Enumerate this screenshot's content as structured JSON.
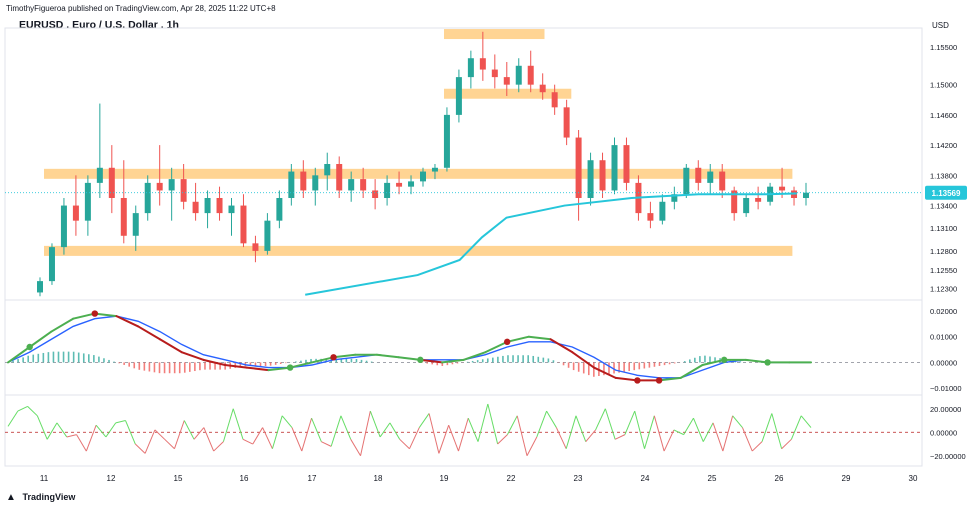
{
  "header": {
    "text": "TimothyFigueroa published on TradingView.com, Apr 28, 2025 11:22 UTC+8"
  },
  "symbol": {
    "title": "EURUSD . Euro / U.S. Dollar . 1h"
  },
  "currency": "USD",
  "footer": {
    "brand": "TradingView",
    "logo_icon": "tradingview-logo-icon"
  },
  "colors": {
    "up": "#26a69a",
    "down": "#ef5350",
    "zone": "#ffcc80",
    "ma": "#26c6da",
    "macd_green": "#4caf50",
    "macd_red": "#b71c1c",
    "macd_blue": "#2962ff",
    "osc_green": "#66dd66",
    "osc_red": "#e57373",
    "price_label": "#26c6da"
  },
  "chart_data": [
    {
      "type": "candlestick",
      "title": "EURUSD . Euro / U.S. Dollar . 1h",
      "ylabel": "USD",
      "ylim": [
        1.1215,
        1.1575
      ],
      "yticks": [
        1.123,
        1.1255,
        1.128,
        1.131,
        1.134,
        1.138,
        1.142,
        1.146,
        1.15,
        1.155
      ],
      "ytick_labels": [
        "1.12300",
        "1.12550",
        "1.12800",
        "1.13100",
        "1.13400",
        "1.13800",
        "1.14200",
        "1.14600",
        "1.15000",
        "1.15500"
      ],
      "xtick_labels": [
        "11",
        "12",
        "15",
        "16",
        "17",
        "18",
        "19",
        "22",
        "23",
        "24",
        "25",
        "26",
        "29",
        "30"
      ],
      "current_price": "1.13569",
      "current_value": 1.1357,
      "grid": false,
      "zones": [
        {
          "label": "resistance-top",
          "from_date": "19",
          "to_date": "22.5",
          "y": 1.1567
        },
        {
          "label": "resistance-mid",
          "from_date": "19",
          "to_date": "22.9",
          "y": 1.1488
        },
        {
          "label": "range-top",
          "from_date": "11",
          "to_date": "26.6",
          "y": 1.1382
        },
        {
          "label": "range-bottom",
          "from_date": "11",
          "to_date": "26.6",
          "y": 1.128
        }
      ],
      "candles": [
        [
          1.1225,
          1.1245,
          1.122,
          1.124
        ],
        [
          1.124,
          1.129,
          1.1235,
          1.1285
        ],
        [
          1.1285,
          1.135,
          1.1275,
          1.134
        ],
        [
          1.134,
          1.138,
          1.13,
          1.132
        ],
        [
          1.132,
          1.138,
          1.13,
          1.137
        ],
        [
          1.137,
          1.1475,
          1.135,
          1.139
        ],
        [
          1.139,
          1.142,
          1.133,
          1.135
        ],
        [
          1.135,
          1.14,
          1.129,
          1.13
        ],
        [
          1.13,
          1.134,
          1.128,
          1.133
        ],
        [
          1.133,
          1.138,
          1.132,
          1.137
        ],
        [
          1.137,
          1.142,
          1.134,
          1.136
        ],
        [
          1.136,
          1.139,
          1.132,
          1.1375
        ],
        [
          1.1375,
          1.1395,
          1.1335,
          1.1345
        ],
        [
          1.1345,
          1.137,
          1.132,
          1.133
        ],
        [
          1.133,
          1.136,
          1.131,
          1.135
        ],
        [
          1.135,
          1.1365,
          1.132,
          1.133
        ],
        [
          1.133,
          1.135,
          1.13,
          1.134
        ],
        [
          1.134,
          1.1355,
          1.1285,
          1.129
        ],
        [
          1.129,
          1.13,
          1.1265,
          1.128
        ],
        [
          1.128,
          1.133,
          1.1275,
          1.132
        ],
        [
          1.132,
          1.136,
          1.131,
          1.135
        ],
        [
          1.135,
          1.1395,
          1.134,
          1.1385
        ],
        [
          1.1385,
          1.14,
          1.135,
          1.136
        ],
        [
          1.136,
          1.139,
          1.134,
          1.138
        ],
        [
          1.138,
          1.141,
          1.136,
          1.1395
        ],
        [
          1.1395,
          1.1405,
          1.135,
          1.136
        ],
        [
          1.136,
          1.1385,
          1.1345,
          1.1375
        ],
        [
          1.1375,
          1.139,
          1.135,
          1.136
        ],
        [
          1.136,
          1.1375,
          1.1335,
          1.135
        ],
        [
          1.135,
          1.138,
          1.134,
          1.137
        ],
        [
          1.137,
          1.1385,
          1.1355,
          1.1365
        ],
        [
          1.1365,
          1.138,
          1.1355,
          1.1372
        ],
        [
          1.1372,
          1.139,
          1.1365,
          1.1385
        ],
        [
          1.1385,
          1.1395,
          1.1375,
          1.139
        ],
        [
          1.139,
          1.147,
          1.1385,
          1.146
        ],
        [
          1.146,
          1.152,
          1.145,
          1.151
        ],
        [
          1.151,
          1.1545,
          1.1495,
          1.1535
        ],
        [
          1.1535,
          1.157,
          1.1505,
          1.152
        ],
        [
          1.152,
          1.154,
          1.1495,
          1.151
        ],
        [
          1.151,
          1.153,
          1.1485,
          1.15
        ],
        [
          1.15,
          1.1535,
          1.149,
          1.1525
        ],
        [
          1.1525,
          1.1545,
          1.149,
          1.15
        ],
        [
          1.15,
          1.1515,
          1.148,
          1.149
        ],
        [
          1.149,
          1.15,
          1.146,
          1.147
        ],
        [
          1.147,
          1.148,
          1.142,
          1.143
        ],
        [
          1.143,
          1.144,
          1.132,
          1.135
        ],
        [
          1.135,
          1.141,
          1.134,
          1.14
        ],
        [
          1.14,
          1.141,
          1.135,
          1.136
        ],
        [
          1.136,
          1.143,
          1.1355,
          1.142
        ],
        [
          1.142,
          1.143,
          1.136,
          1.137
        ],
        [
          1.137,
          1.138,
          1.132,
          1.133
        ],
        [
          1.133,
          1.1345,
          1.131,
          1.132
        ],
        [
          1.132,
          1.1355,
          1.1315,
          1.1345
        ],
        [
          1.1345,
          1.1365,
          1.1335,
          1.1355
        ],
        [
          1.1355,
          1.1395,
          1.135,
          1.139
        ],
        [
          1.139,
          1.14,
          1.136,
          1.137
        ],
        [
          1.137,
          1.1395,
          1.1355,
          1.1385
        ],
        [
          1.1385,
          1.1395,
          1.135,
          1.136
        ],
        [
          1.136,
          1.1365,
          1.132,
          1.133
        ],
        [
          1.133,
          1.1355,
          1.1325,
          1.135
        ],
        [
          1.135,
          1.1365,
          1.1335,
          1.1345
        ],
        [
          1.1345,
          1.137,
          1.134,
          1.1365
        ],
        [
          1.1365,
          1.139,
          1.135,
          1.136
        ],
        [
          1.136,
          1.1365,
          1.134,
          1.135
        ],
        [
          1.135,
          1.137,
          1.134,
          1.1357
        ]
      ],
      "sma": [
        {
          "date": "16.9",
          "value": 1.1222
        },
        {
          "date": "18.6",
          "value": 1.1248
        },
        {
          "date": "19.7",
          "value": 1.1268
        },
        {
          "date": "20.7",
          "value": 1.1298
        },
        {
          "date": "21.8",
          "value": 1.1324
        },
        {
          "date": "22.8",
          "value": 1.134
        },
        {
          "date": "23.8",
          "value": 1.135
        },
        {
          "date": "24.8",
          "value": 1.1355
        },
        {
          "date": "25.8",
          "value": 1.1355
        },
        {
          "date": "26.8",
          "value": 1.1356
        }
      ]
    },
    {
      "type": "line",
      "name": "macd-pane",
      "ylim": [
        -0.0115,
        0.0235
      ],
      "yticks": [
        0.02,
        0.01,
        0.0,
        -0.01
      ],
      "ytick_labels": [
        "0.02000",
        "0.01000",
        "0.00000",
        "−0.01000"
      ],
      "macd": [
        0.0,
        0.006,
        0.012,
        0.017,
        0.019,
        0.018,
        0.014,
        0.009,
        0.004,
        0.001,
        -0.001,
        -0.002,
        -0.003,
        -0.002,
        0.0,
        0.002,
        0.003,
        0.003,
        0.002,
        0.001,
        0.0,
        0.001,
        0.004,
        0.008,
        0.01,
        0.009,
        0.004,
        -0.002,
        -0.006,
        -0.007,
        -0.007,
        -0.006,
        -0.001,
        0.001,
        0.001,
        0.0,
        0.0,
        0.0
      ],
      "signal": [
        0.0,
        0.004,
        0.009,
        0.014,
        0.017,
        0.018,
        0.016,
        0.012,
        0.007,
        0.003,
        0.001,
        -0.001,
        -0.002,
        -0.002,
        -0.001,
        0.001,
        0.002,
        0.003,
        0.002,
        0.001,
        0.001,
        0.001,
        0.003,
        0.006,
        0.008,
        0.008,
        0.006,
        0.002,
        -0.003,
        -0.005,
        -0.006,
        -0.006,
        -0.003,
        0.0,
        0.001,
        0.0,
        0.0,
        0.0
      ],
      "cross_up": [
        1,
        13,
        19,
        33,
        35
      ],
      "cross_down": [
        4,
        15,
        23,
        29,
        30
      ]
    },
    {
      "type": "line",
      "name": "oscillator-pane",
      "ylim": [
        -27,
        30
      ],
      "yticks": [
        20,
        0,
        -20
      ],
      "ytick_labels": [
        "20.00000",
        "0.00000",
        "−20.00000"
      ],
      "values": [
        5,
        18,
        22,
        14,
        -6,
        8,
        -4,
        -2,
        -16,
        6,
        -4,
        8,
        10,
        -10,
        -18,
        2,
        -6,
        -14,
        10,
        -6,
        4,
        -16,
        -8,
        20,
        -6,
        -10,
        4,
        -14,
        14,
        4,
        -16,
        12,
        -8,
        -12,
        14,
        -6,
        -20,
        18,
        -4,
        8,
        -6,
        -14,
        4,
        16,
        -18,
        6,
        -16,
        12,
        -8,
        24,
        -10,
        -2,
        14,
        -20,
        -4,
        18,
        4,
        -14,
        14,
        -8,
        2,
        20,
        -6,
        -2,
        18,
        -14,
        14,
        -16,
        2,
        -2,
        12,
        -8,
        8,
        -16,
        14,
        4,
        -16,
        -8,
        16,
        -14,
        -6,
        14,
        4
      ]
    }
  ]
}
